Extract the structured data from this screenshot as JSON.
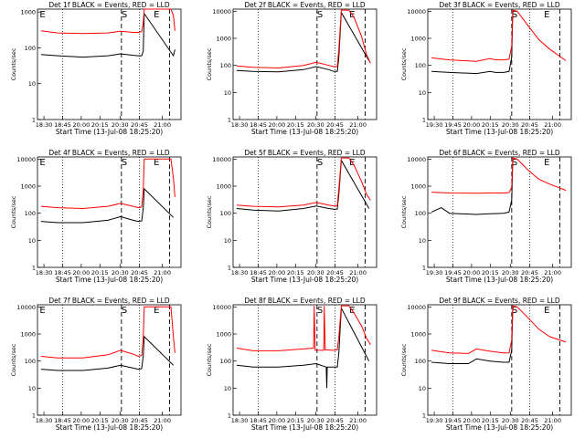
{
  "chart_data": [
    {
      "type": "line",
      "title": "Det 1f BLACK = Events, RED = LLD",
      "xlabel": "Start Time (13-Jul-08 18:25:20)",
      "ylabel": "Counts/sec",
      "x_ticks": [
        "18:30",
        "18:45",
        "20:00",
        "20:15",
        "20:30",
        "20:45",
        "21:00"
      ],
      "y_ticks": [
        "1",
        "10",
        "100",
        "1000"
      ],
      "ylim": [
        1,
        1200
      ],
      "yscale": "log",
      "markers": [
        "E",
        "S",
        "E"
      ],
      "series": [
        {
          "color": "#000000",
          "x": [
            18.42,
            18.75,
            19.25,
            19.75,
            20.0,
            20.25,
            20.35,
            20.42,
            20.45,
            20.47,
            21.05,
            21.08
          ],
          "values": [
            65,
            60,
            55,
            60,
            68,
            62,
            60,
            60,
            80,
            900,
            60,
            90
          ]
        },
        {
          "color": "#ff0000",
          "x": [
            18.42,
            18.75,
            19.25,
            19.75,
            20.0,
            20.25,
            20.35,
            20.42,
            20.45,
            20.47,
            21.0,
            21.05,
            21.08
          ],
          "values": [
            300,
            260,
            250,
            260,
            290,
            270,
            270,
            280,
            500,
            1200,
            1200,
            800,
            300
          ]
        }
      ]
    },
    {
      "type": "line",
      "title": "Det 2f BLACK = Events, RED = LLD",
      "xlabel": "Start Time (13-Jul-08 18:25:20)",
      "ylabel": "Counts/sec",
      "x_ticks": [
        "18:30",
        "18:45",
        "20:00",
        "20:15",
        "20:30",
        "20:45",
        "21:00"
      ],
      "y_ticks": [
        "1",
        "10",
        "100",
        "1000",
        "10000"
      ],
      "ylim": [
        1,
        12000
      ],
      "yscale": "log",
      "markers": [
        "S",
        "E"
      ],
      "series": [
        {
          "color": "#000000",
          "x": [
            18.42,
            18.75,
            19.25,
            19.75,
            20.0,
            20.25,
            20.35,
            20.42,
            20.45,
            20.5,
            21.05
          ],
          "values": [
            65,
            60,
            58,
            70,
            90,
            70,
            60,
            60,
            200,
            9000,
            150
          ]
        },
        {
          "color": "#ff0000",
          "x": [
            18.42,
            18.75,
            19.25,
            19.75,
            20.0,
            20.25,
            20.35,
            20.42,
            20.45,
            20.5,
            20.65,
            20.75,
            20.9,
            21.0,
            21.08
          ],
          "values": [
            95,
            85,
            80,
            100,
            130,
            100,
            90,
            90,
            400,
            11000,
            11000,
            6000,
            1200,
            250,
            120
          ]
        }
      ]
    },
    {
      "type": "line",
      "title": "Det 3f BLACK = Events, RED = LLD",
      "xlabel": "Start Time (13-Jul-08 18:25:20)",
      "ylabel": "Counts/sec",
      "x_ticks": [
        "19:30",
        "19:45",
        "20:00",
        "20:15",
        "20:30",
        "20:45",
        "21:00"
      ],
      "y_ticks": [
        "1",
        "10",
        "100",
        "1000",
        "10000"
      ],
      "ylim": [
        1,
        12000
      ],
      "yscale": "log",
      "markers": [
        "S",
        "E"
      ],
      "series": [
        {
          "color": "#000000",
          "x": [
            19.42,
            19.75,
            20.25,
            20.5,
            20.6,
            20.75,
            20.85,
            20.9,
            20.92
          ],
          "values": [
            60,
            55,
            50,
            60,
            55,
            55,
            60,
            200,
            9000
          ]
        },
        {
          "color": "#ff0000",
          "x": [
            19.42,
            19.75,
            20.25,
            20.5,
            20.6,
            20.75,
            20.85,
            20.9,
            20.92,
            21.0,
            21.2,
            21.4,
            21.6,
            21.9
          ],
          "values": [
            190,
            160,
            140,
            180,
            160,
            160,
            170,
            500,
            11000,
            10000,
            3000,
            900,
            400,
            150
          ]
        }
      ]
    },
    {
      "type": "line",
      "title": "Det 4f BLACK = Events, RED = LLD",
      "xlabel": "Start Time (13-Jul-08 18:25:20)",
      "ylabel": "Counts/sec",
      "x_ticks": [
        "18:30",
        "18:45",
        "20:00",
        "20:15",
        "20:30",
        "20:45",
        "21:00"
      ],
      "y_ticks": [
        "1",
        "10",
        "100",
        "1000",
        "10000"
      ],
      "ylim": [
        1,
        12000
      ],
      "yscale": "log",
      "markers": [
        "E",
        "S",
        "E"
      ],
      "series": [
        {
          "color": "#000000",
          "x": [
            18.42,
            18.75,
            19.25,
            19.75,
            20.0,
            20.25,
            20.35,
            20.42,
            20.45,
            20.47,
            21.05
          ],
          "values": [
            50,
            45,
            45,
            55,
            75,
            55,
            50,
            52,
            150,
            800,
            70
          ]
        },
        {
          "color": "#ff0000",
          "x": [
            18.42,
            18.75,
            19.25,
            19.75,
            20.0,
            20.25,
            20.35,
            20.42,
            20.45,
            20.47,
            21.0,
            21.05,
            21.08
          ],
          "values": [
            180,
            160,
            150,
            180,
            230,
            180,
            160,
            170,
            700,
            10000,
            10000,
            2000,
            400
          ]
        }
      ]
    },
    {
      "type": "line",
      "title": "Det 5f BLACK = Events, RED = LLD",
      "xlabel": "Start Time (13-Jul-08 18:25:20)",
      "ylabel": "Counts/sec",
      "x_ticks": [
        "18:30",
        "18:45",
        "20:00",
        "20:15",
        "20:30",
        "20:45",
        "21:00"
      ],
      "y_ticks": [
        "1",
        "10",
        "100",
        "1000",
        "10000"
      ],
      "ylim": [
        1,
        12000
      ],
      "yscale": "log",
      "markers": [
        "S",
        "E"
      ],
      "series": [
        {
          "color": "#000000",
          "x": [
            18.42,
            18.75,
            19.25,
            19.75,
            20.0,
            20.25,
            20.35,
            20.42,
            20.45,
            20.5,
            21.05
          ],
          "values": [
            150,
            130,
            120,
            150,
            185,
            150,
            140,
            140,
            500,
            9000,
            150
          ]
        },
        {
          "color": "#ff0000",
          "x": [
            18.42,
            18.75,
            19.25,
            19.75,
            20.0,
            20.25,
            20.35,
            20.42,
            20.45,
            20.5,
            20.65,
            20.75,
            20.9,
            21.0,
            21.08
          ],
          "values": [
            200,
            180,
            170,
            200,
            250,
            200,
            185,
            190,
            800,
            11000,
            11000,
            6000,
            1500,
            500,
            300
          ]
        }
      ]
    },
    {
      "type": "line",
      "title": "Det 6f BLACK = Events, RED = LLD",
      "xlabel": "Start Time (13-Jul-08 18:25:20)",
      "ylabel": "Counts/sec",
      "x_ticks": [
        "19:30",
        "19:45",
        "20:00",
        "20:15",
        "20:30",
        "20:45",
        "21:00"
      ],
      "y_ticks": [
        "1",
        "10",
        "100",
        "1000",
        "10000"
      ],
      "ylim": [
        1,
        12000
      ],
      "yscale": "log",
      "markers": [
        "S",
        "E"
      ],
      "series": [
        {
          "color": "#000000",
          "x": [
            19.42,
            19.6,
            19.75,
            20.25,
            20.5,
            20.75,
            20.85,
            20.9,
            20.92
          ],
          "values": [
            110,
            160,
            100,
            90,
            95,
            100,
            110,
            300,
            9000
          ]
        },
        {
          "color": "#ff0000",
          "x": [
            19.42,
            19.75,
            20.25,
            20.5,
            20.75,
            20.85,
            20.9,
            20.92,
            21.0,
            21.2,
            21.4,
            21.6,
            21.9
          ],
          "values": [
            600,
            560,
            550,
            560,
            560,
            580,
            900,
            11000,
            10000,
            4000,
            1800,
            1200,
            700
          ]
        }
      ]
    },
    {
      "type": "line",
      "title": "Det 7f BLACK = Events, RED = LLD",
      "xlabel": "Start Time (13-Jul-08 18:25:20)",
      "ylabel": "Counts/sec",
      "x_ticks": [
        "18:30",
        "18:45",
        "20:00",
        "20:15",
        "20:30",
        "20:45",
        "21:00"
      ],
      "y_ticks": [
        "1",
        "10",
        "100",
        "1000",
        "10000"
      ],
      "ylim": [
        1,
        12000
      ],
      "yscale": "log",
      "markers": [
        "E",
        "S",
        "E"
      ],
      "series": [
        {
          "color": "#000000",
          "x": [
            18.42,
            18.75,
            19.25,
            19.75,
            20.0,
            20.25,
            20.35,
            20.42,
            20.45,
            20.47,
            21.05
          ],
          "values": [
            50,
            45,
            45,
            55,
            70,
            55,
            50,
            52,
            150,
            800,
            70
          ]
        },
        {
          "color": "#ff0000",
          "x": [
            18.42,
            18.75,
            19.25,
            19.75,
            20.0,
            20.25,
            20.35,
            20.42,
            20.45,
            20.47,
            21.0,
            21.05,
            21.08
          ],
          "values": [
            150,
            130,
            130,
            170,
            250,
            180,
            150,
            160,
            700,
            10000,
            10000,
            800,
            200
          ]
        }
      ]
    },
    {
      "type": "line",
      "title": "Det 8f BLACK = Events, RED = LLD",
      "xlabel": "Start Time (13-Jul-08 18:25:20)",
      "ylabel": "Counts/sec",
      "x_ticks": [
        "18:30",
        "18:45",
        "20:00",
        "20:15",
        "20:30",
        "20:45",
        "21:00"
      ],
      "y_ticks": [
        "1",
        "10",
        "100",
        "1000",
        "10000"
      ],
      "ylim": [
        1,
        12000
      ],
      "yscale": "log",
      "markers": [
        "S",
        "E"
      ],
      "series": [
        {
          "color": "#000000",
          "x": [
            18.42,
            18.75,
            19.25,
            19.75,
            20.0,
            20.2,
            20.21,
            20.22,
            20.35,
            20.42,
            20.45,
            20.5,
            21.05
          ],
          "values": [
            70,
            60,
            60,
            70,
            80,
            60,
            10,
            60,
            60,
            60,
            200,
            9000,
            100
          ]
        },
        {
          "color": "#ff0000",
          "x": [
            18.42,
            18.75,
            19.25,
            19.75,
            19.95,
            19.96,
            19.98,
            20.15,
            20.16,
            20.18,
            20.35,
            20.42,
            20.45,
            20.5,
            20.65,
            20.75,
            20.9,
            21.0,
            21.08
          ],
          "values": [
            300,
            240,
            240,
            280,
            300,
            11000,
            250,
            250,
            11000,
            260,
            250,
            260,
            800,
            11000,
            11000,
            6000,
            2000,
            700,
            400
          ]
        }
      ]
    },
    {
      "type": "line",
      "title": "Det 9f BLACK = Events, RED = LLD",
      "xlabel": "Start Time (13-Jul-08 18:25:20)",
      "ylabel": "Counts/sec",
      "x_ticks": [
        "19:30",
        "19:45",
        "20:00",
        "20:15",
        "20:30",
        "20:45",
        "21:00"
      ],
      "y_ticks": [
        "1",
        "10",
        "100",
        "1000",
        "10000"
      ],
      "ylim": [
        1,
        12000
      ],
      "yscale": "log",
      "markers": [
        "S",
        "E"
      ],
      "series": [
        {
          "color": "#000000",
          "x": [
            19.42,
            19.75,
            20.1,
            20.25,
            20.5,
            20.75,
            20.85,
            20.9,
            20.92
          ],
          "values": [
            90,
            80,
            80,
            120,
            100,
            90,
            90,
            250,
            9000
          ]
        },
        {
          "color": "#ff0000",
          "x": [
            19.42,
            19.75,
            20.1,
            20.25,
            20.5,
            20.75,
            20.85,
            20.9,
            20.92,
            21.0,
            21.2,
            21.4,
            21.6,
            21.9
          ],
          "values": [
            250,
            200,
            190,
            280,
            230,
            200,
            200,
            600,
            11000,
            10000,
            4000,
            1500,
            800,
            500
          ]
        }
      ]
    }
  ]
}
